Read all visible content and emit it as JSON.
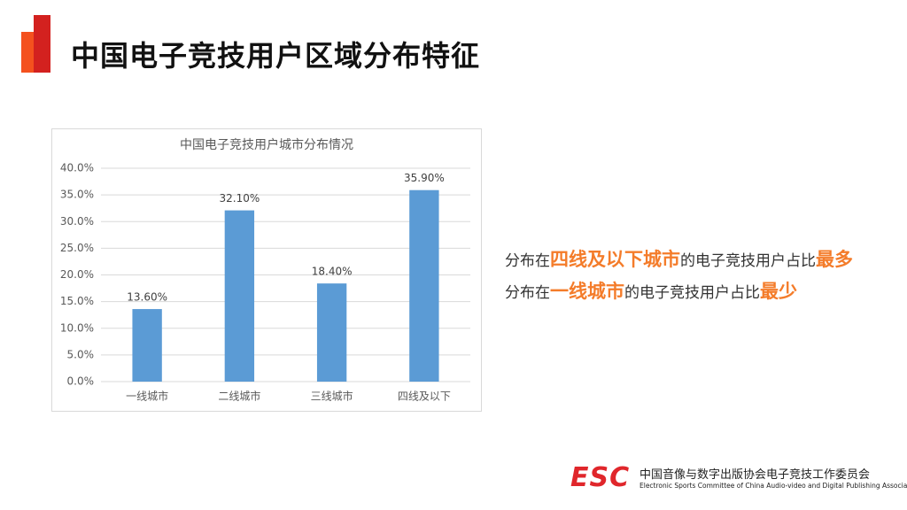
{
  "header": {
    "title": "中国电子竞技用户区域分布特征"
  },
  "chart_data": {
    "type": "bar",
    "title": "中国电子竞技用户城市分布情况",
    "categories": [
      "一线城市",
      "二线城市",
      "三线城市",
      "四线及以下"
    ],
    "values": [
      13.6,
      32.1,
      18.4,
      35.9
    ],
    "value_labels": [
      "13.60%",
      "32.10%",
      "18.40%",
      "35.90%"
    ],
    "color": "#5b9bd5",
    "ylim": [
      0,
      40
    ],
    "yticks": [
      {
        "value": 0,
        "label": "0.0%"
      },
      {
        "value": 5,
        "label": "5.0%"
      },
      {
        "value": 10,
        "label": "10.0%"
      },
      {
        "value": 15,
        "label": "15.0%"
      },
      {
        "value": 20,
        "label": "20.0%"
      },
      {
        "value": 25,
        "label": "25.0%"
      },
      {
        "value": 30,
        "label": "30.0%"
      },
      {
        "value": 35,
        "label": "35.0%"
      },
      {
        "value": 40,
        "label": "40.0%"
      }
    ],
    "grid": true
  },
  "notes": [
    {
      "parts": [
        "分布在",
        "四线及以下城市",
        "的电子竞技用户占比",
        "最多"
      ]
    },
    {
      "parts": [
        "分布在",
        "一线城市",
        "的电子竞技用户占比",
        "最少"
      ]
    }
  ],
  "footer": {
    "logo": "ESC",
    "org_name": "中国音像与数字出版协会电子竞技工作委员会",
    "org_name_en": "Electronic Sports Committee of China Audio-video and Digital Publishing Association"
  }
}
